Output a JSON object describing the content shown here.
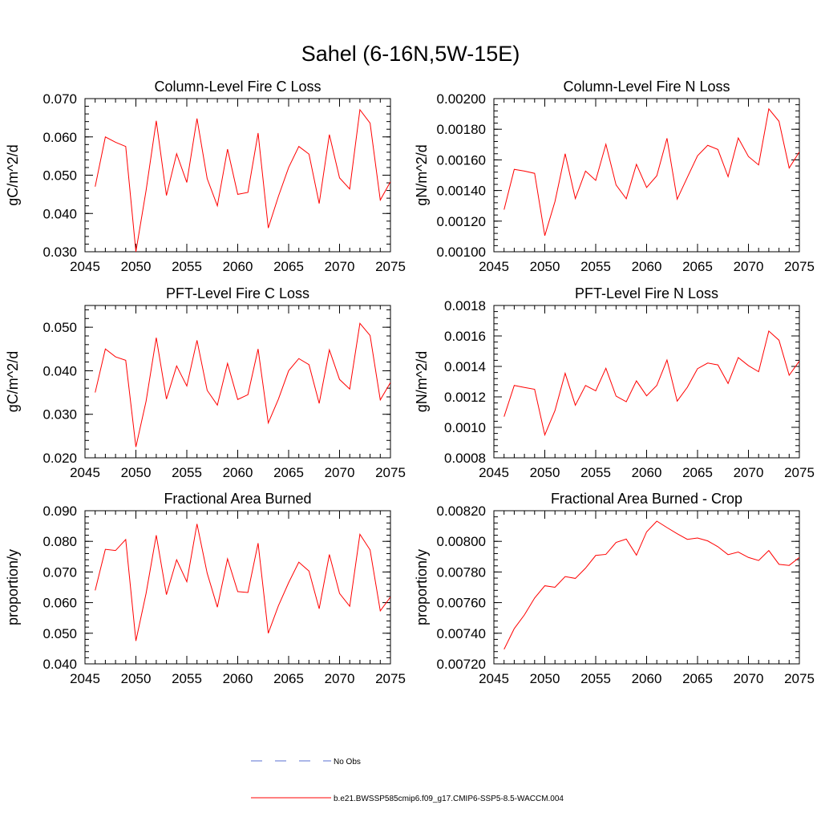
{
  "figure": {
    "title": "Sahel (6-16N,5W-15E)",
    "legend": [
      {
        "label": "No Obs",
        "color": "#5a6fd0",
        "style": "dashed"
      },
      {
        "label": "b.e21.BWSSP585cmip6.f09_g17.CMIP6-SSP5-8.5-WACCM.004",
        "color": "#ff0000",
        "style": "solid"
      }
    ]
  },
  "chart_data": [
    {
      "type": "line",
      "title": "Column-Level Fire C Loss",
      "ylabel": "gC/m^2/d",
      "xlabel": "",
      "xlim": [
        2045,
        2075
      ],
      "ylim": [
        0.03,
        0.07
      ],
      "x_ticks": [
        "2045",
        "2050",
        "2055",
        "2060",
        "2065",
        "2070",
        "2075"
      ],
      "y_ticks": [
        "0.030",
        "0.040",
        "0.050",
        "0.060",
        "0.070"
      ],
      "y_tick_values": [
        0.03,
        0.04,
        0.05,
        0.06,
        0.07
      ],
      "x": [
        2046,
        2047,
        2048,
        2049,
        2050,
        2051,
        2052,
        2053,
        2054,
        2055,
        2056,
        2057,
        2058,
        2059,
        2060,
        2061,
        2062,
        2063,
        2064,
        2065,
        2066,
        2067,
        2068,
        2069,
        2070,
        2071,
        2072,
        2073,
        2074,
        2075
      ],
      "series": [
        {
          "color": "#ff0000",
          "values": [
            0.047,
            0.06,
            0.0586,
            0.0575,
            0.03,
            0.046,
            0.0642,
            0.0447,
            0.0556,
            0.0481,
            0.0648,
            0.0491,
            0.042,
            0.0568,
            0.045,
            0.0455,
            0.061,
            0.0362,
            0.0445,
            0.052,
            0.0575,
            0.0555,
            0.0426,
            0.0606,
            0.0493,
            0.0464,
            0.0671,
            0.0636,
            0.0435,
            0.0483
          ]
        }
      ]
    },
    {
      "type": "line",
      "title": "Column-Level Fire N Loss",
      "ylabel": "gN/m^2/d",
      "xlabel": "",
      "xlim": [
        2045,
        2075
      ],
      "ylim": [
        0.001,
        0.002
      ],
      "x_ticks": [
        "2045",
        "2050",
        "2055",
        "2060",
        "2065",
        "2070",
        "2075"
      ],
      "y_ticks": [
        "0.00100",
        "0.00120",
        "0.00140",
        "0.00160",
        "0.00180",
        "0.00200"
      ],
      "y_tick_values": [
        0.001,
        0.0012,
        0.0014,
        0.0016,
        0.0018,
        0.002
      ],
      "x": [
        2046,
        2047,
        2048,
        2049,
        2050,
        2051,
        2052,
        2053,
        2054,
        2055,
        2056,
        2057,
        2058,
        2059,
        2060,
        2061,
        2062,
        2063,
        2064,
        2065,
        2066,
        2067,
        2068,
        2069,
        2070,
        2071,
        2072,
        2073,
        2074,
        2075
      ],
      "series": [
        {
          "color": "#ff0000",
          "values": [
            0.001275,
            0.001538,
            0.001527,
            0.001512,
            0.001105,
            0.001328,
            0.00164,
            0.001347,
            0.001527,
            0.001466,
            0.001702,
            0.001436,
            0.001346,
            0.001571,
            0.00142,
            0.001496,
            0.001741,
            0.001343,
            0.001486,
            0.001627,
            0.001695,
            0.001668,
            0.00149,
            0.001743,
            0.001622,
            0.001567,
            0.001933,
            0.001852,
            0.001547,
            0.001652
          ]
        }
      ]
    },
    {
      "type": "line",
      "title": "PFT-Level Fire C Loss",
      "ylabel": "gC/m^2/d",
      "xlabel": "",
      "xlim": [
        2045,
        2075
      ],
      "ylim": [
        0.02,
        0.055
      ],
      "x_ticks": [
        "2045",
        "2050",
        "2055",
        "2060",
        "2065",
        "2070",
        "2075"
      ],
      "y_ticks": [
        "0.020",
        "0.030",
        "0.040",
        "0.050"
      ],
      "y_tick_values": [
        0.02,
        0.03,
        0.04,
        0.05
      ],
      "x": [
        2046,
        2047,
        2048,
        2049,
        2050,
        2051,
        2052,
        2053,
        2054,
        2055,
        2056,
        2057,
        2058,
        2059,
        2060,
        2061,
        2062,
        2063,
        2064,
        2065,
        2066,
        2067,
        2068,
        2069,
        2070,
        2071,
        2072,
        2073,
        2074,
        2075
      ],
      "series": [
        {
          "color": "#ff0000",
          "values": [
            0.035,
            0.045,
            0.0432,
            0.0424,
            0.0225,
            0.033,
            0.0476,
            0.0335,
            0.0411,
            0.0365,
            0.047,
            0.0355,
            0.0321,
            0.0417,
            0.0334,
            0.0345,
            0.045,
            0.028,
            0.0335,
            0.04,
            0.0428,
            0.0414,
            0.0325,
            0.0448,
            0.038,
            0.0358,
            0.0509,
            0.0481,
            0.0333,
            0.0373
          ]
        }
      ]
    },
    {
      "type": "line",
      "title": "PFT-Level Fire N Loss",
      "ylabel": "gN/m^2/d",
      "xlabel": "",
      "xlim": [
        2045,
        2075
      ],
      "ylim": [
        0.0008,
        0.0018
      ],
      "x_ticks": [
        "2045",
        "2050",
        "2055",
        "2060",
        "2065",
        "2070",
        "2075"
      ],
      "y_ticks": [
        "0.0008",
        "0.0010",
        "0.0012",
        "0.0014",
        "0.0016",
        "0.0018"
      ],
      "y_tick_values": [
        0.0008,
        0.001,
        0.0012,
        0.0014,
        0.0016,
        0.0018
      ],
      "x": [
        2046,
        2047,
        2048,
        2049,
        2050,
        2051,
        2052,
        2053,
        2054,
        2055,
        2056,
        2057,
        2058,
        2059,
        2060,
        2061,
        2062,
        2063,
        2064,
        2065,
        2066,
        2067,
        2068,
        2069,
        2070,
        2071,
        2072,
        2073,
        2074,
        2075
      ],
      "series": [
        {
          "color": "#ff0000",
          "values": [
            0.00107,
            0.001275,
            0.001262,
            0.00125,
            0.00095,
            0.00111,
            0.001355,
            0.001145,
            0.001275,
            0.00124,
            0.001388,
            0.001205,
            0.001168,
            0.001305,
            0.001207,
            0.001275,
            0.001442,
            0.001172,
            0.001263,
            0.001385,
            0.001422,
            0.00141,
            0.001288,
            0.001458,
            0.001405,
            0.001365,
            0.001632,
            0.001572,
            0.001342,
            0.001435
          ]
        }
      ]
    },
    {
      "type": "line",
      "title": "Fractional Area Burned",
      "ylabel": "proportion/y",
      "xlabel": "",
      "xlim": [
        2045,
        2075
      ],
      "ylim": [
        0.04,
        0.09
      ],
      "x_ticks": [
        "2045",
        "2050",
        "2055",
        "2060",
        "2065",
        "2070",
        "2075"
      ],
      "y_ticks": [
        "0.040",
        "0.050",
        "0.060",
        "0.070",
        "0.080",
        "0.090"
      ],
      "y_tick_values": [
        0.04,
        0.05,
        0.06,
        0.07,
        0.08,
        0.09
      ],
      "x": [
        2046,
        2047,
        2048,
        2049,
        2050,
        2051,
        2052,
        2053,
        2054,
        2055,
        2056,
        2057,
        2058,
        2059,
        2060,
        2061,
        2062,
        2063,
        2064,
        2065,
        2066,
        2067,
        2068,
        2069,
        2070,
        2071,
        2072,
        2073,
        2074,
        2075
      ],
      "series": [
        {
          "color": "#ff0000",
          "values": [
            0.064,
            0.0774,
            0.077,
            0.0806,
            0.0475,
            0.063,
            0.082,
            0.0626,
            0.074,
            0.0668,
            0.0857,
            0.0696,
            0.0585,
            0.0743,
            0.0636,
            0.0633,
            0.0794,
            0.05,
            0.059,
            0.0665,
            0.0732,
            0.0703,
            0.058,
            0.0757,
            0.063,
            0.0588,
            0.0823,
            0.0772,
            0.0573,
            0.0618
          ]
        }
      ]
    },
    {
      "type": "line",
      "title": "Fractional Area Burned - Crop",
      "ylabel": "proportion/y",
      "xlabel": "",
      "xlim": [
        2045,
        2075
      ],
      "ylim": [
        0.0072,
        0.0082
      ],
      "x_ticks": [
        "2045",
        "2050",
        "2055",
        "2060",
        "2065",
        "2070",
        "2075"
      ],
      "y_ticks": [
        "0.00720",
        "0.00740",
        "0.00760",
        "0.00780",
        "0.00800",
        "0.00820"
      ],
      "y_tick_values": [
        0.0072,
        0.0074,
        0.0076,
        0.0078,
        0.008,
        0.0082
      ],
      "x": [
        2046,
        2047,
        2048,
        2049,
        2050,
        2051,
        2052,
        2053,
        2054,
        2055,
        2056,
        2057,
        2058,
        2059,
        2060,
        2061,
        2062,
        2063,
        2064,
        2065,
        2066,
        2067,
        2068,
        2069,
        2070,
        2071,
        2072,
        2073,
        2074,
        2075
      ],
      "series": [
        {
          "color": "#ff0000",
          "values": [
            0.007295,
            0.00743,
            0.00752,
            0.00763,
            0.00771,
            0.0077,
            0.00777,
            0.007758,
            0.007825,
            0.007908,
            0.007915,
            0.007993,
            0.008015,
            0.00791,
            0.008062,
            0.008132,
            0.00809,
            0.00805,
            0.008013,
            0.008022,
            0.008003,
            0.007965,
            0.007913,
            0.00793,
            0.007895,
            0.007875,
            0.00794,
            0.00785,
            0.007843,
            0.007895
          ]
        }
      ]
    }
  ]
}
